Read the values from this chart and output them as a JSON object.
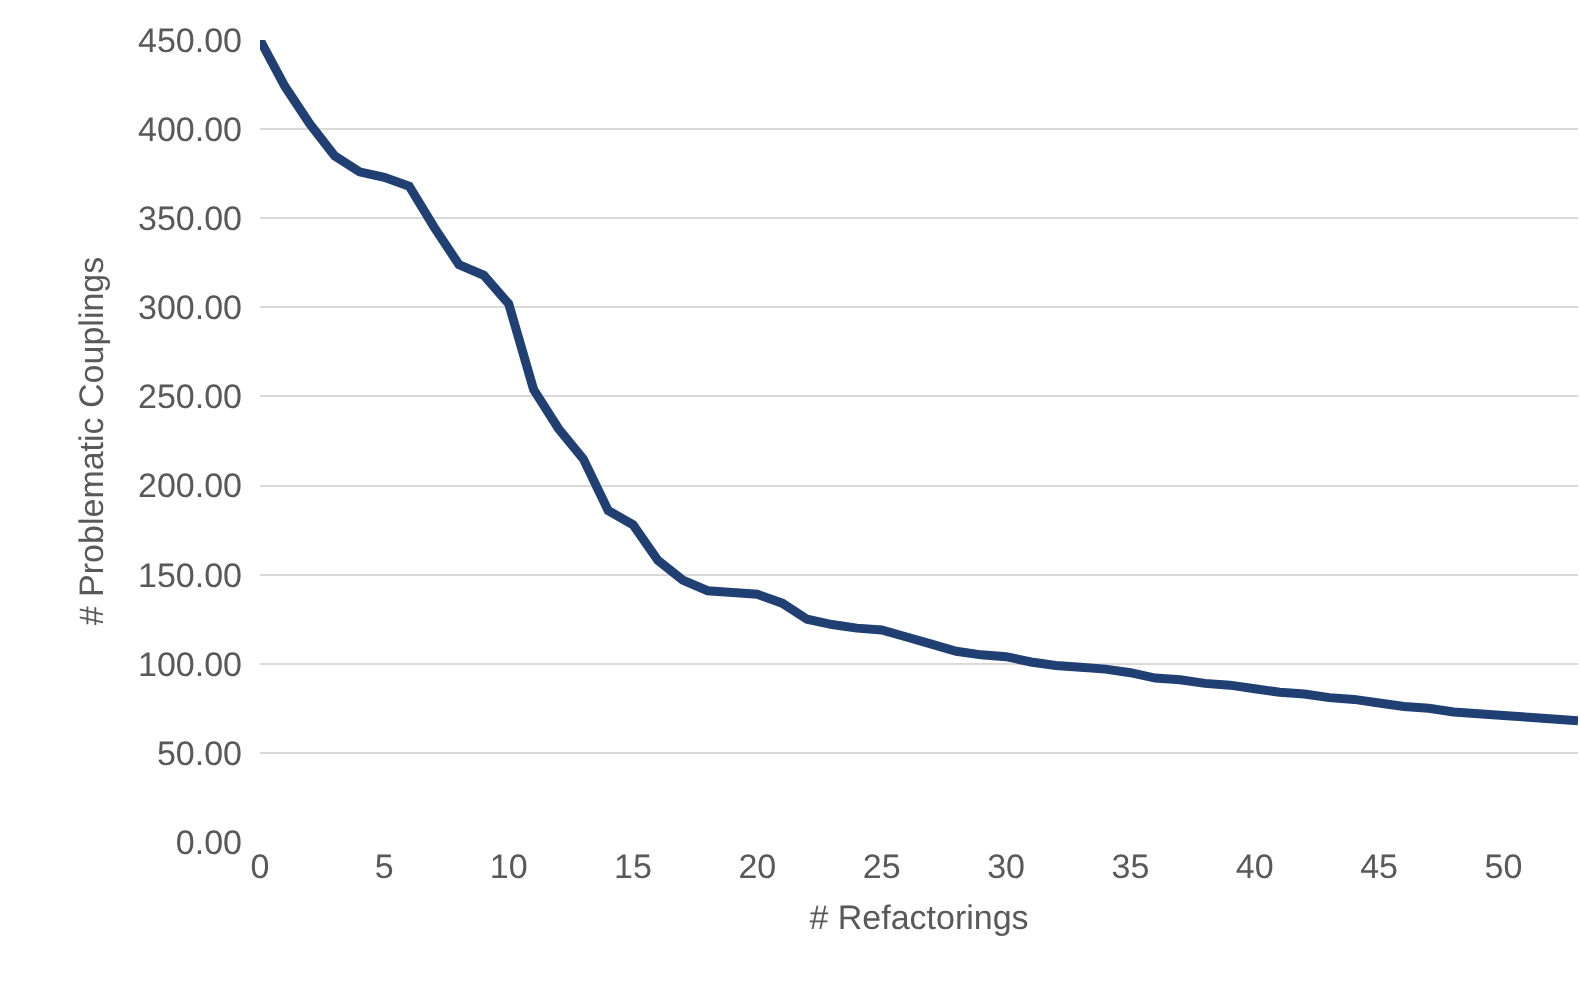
{
  "chart_data": {
    "type": "line",
    "xlabel": "# Refactorings",
    "ylabel": "# Problematic Couplings",
    "x": [
      0,
      1,
      2,
      3,
      4,
      5,
      6,
      7,
      8,
      9,
      10,
      11,
      12,
      13,
      14,
      15,
      16,
      17,
      18,
      19,
      20,
      21,
      22,
      23,
      24,
      25,
      26,
      27,
      28,
      29,
      30,
      31,
      32,
      33,
      34,
      35,
      36,
      37,
      38,
      39,
      40,
      41,
      42,
      43,
      44,
      45,
      46,
      47,
      48,
      49,
      50,
      51,
      52,
      53
    ],
    "series": [
      {
        "color": "#203f73",
        "values": [
          450,
          424,
          403,
          385,
          376,
          373,
          368,
          345,
          324,
          318,
          302,
          254,
          232,
          215,
          186,
          178,
          158,
          147,
          141,
          140,
          139,
          134,
          125,
          122,
          120,
          119,
          115,
          111,
          107,
          105,
          104,
          101,
          99,
          98,
          97,
          95,
          92,
          91,
          89,
          88,
          86,
          84,
          83,
          81,
          80,
          78,
          76,
          75,
          73,
          72,
          71,
          70,
          69,
          68
        ]
      }
    ],
    "xlim": [
      0,
      53
    ],
    "xticks": [
      0,
      5,
      10,
      15,
      20,
      25,
      30,
      35,
      40,
      45,
      50
    ],
    "ylim": [
      0,
      450
    ],
    "yticks": [
      {
        "value": 0,
        "label": "0.00"
      },
      {
        "value": 50,
        "label": "50.00"
      },
      {
        "value": 100,
        "label": "100.00"
      },
      {
        "value": 150,
        "label": "150.00"
      },
      {
        "value": 200,
        "label": "200.00"
      },
      {
        "value": 250,
        "label": "250.00"
      },
      {
        "value": 300,
        "label": "300.00"
      },
      {
        "value": 350,
        "label": "350.00"
      },
      {
        "value": 400,
        "label": "400.00"
      },
      {
        "value": 450,
        "label": "450.00"
      }
    ],
    "grid": "y",
    "legend": false,
    "marker": "none",
    "line_style": "solid"
  }
}
